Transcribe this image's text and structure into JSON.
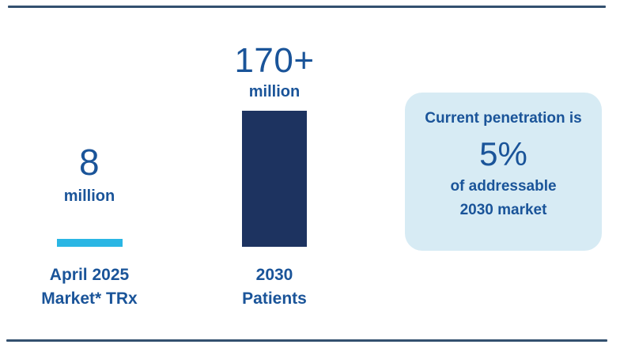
{
  "chart_data": {
    "type": "bar",
    "title": "",
    "categories": [
      "April 2025 Market* TRx",
      "2030 Patients"
    ],
    "values": [
      8,
      170
    ],
    "value_labels": [
      "8 million",
      "170+ million"
    ],
    "unit": "million",
    "bar_colors": [
      "#2ab6e4",
      "#1d3360"
    ],
    "grid": false,
    "legend": false,
    "annotations": [
      "Current penetration is 5% of addressable 2030 market"
    ]
  },
  "bars": [
    {
      "value": "8",
      "unit": "million",
      "label_line1": "April 2025",
      "label_line2": "Market* TRx",
      "color": "#2ab6e4"
    },
    {
      "value": "170+",
      "unit": "million",
      "label_line1": "2030",
      "label_line2": "Patients",
      "color": "#1d3360"
    }
  ],
  "callout": {
    "line1": "Current penetration is",
    "stat": "5%",
    "line2": "of addressable",
    "line3": "2030 market",
    "background": "#d7ebf4"
  },
  "colors": {
    "text_blue": "#1a5499",
    "rule_navy": "#33506f",
    "background": "#ffffff"
  }
}
